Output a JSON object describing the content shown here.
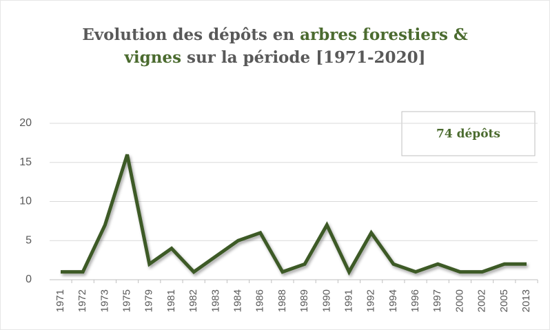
{
  "chart_data": {
    "type": "line",
    "title_lines": [
      [
        {
          "text": "Evolution des dépôts en ",
          "color": "#595959"
        },
        {
          "text": "arbres forestiers &",
          "color": "#4b6b2f"
        }
      ],
      [
        {
          "text": "vignes",
          "color": "#4b6b2f"
        },
        {
          "text": " sur la période [1971-2020]",
          "color": "#595959"
        }
      ]
    ],
    "annotation": "74 dépôts",
    "categories": [
      "1971",
      "1972",
      "1973",
      "1975",
      "1979",
      "1981",
      "1982",
      "1983",
      "1984",
      "1986",
      "1988",
      "1989",
      "1990",
      "1991",
      "1992",
      "1994",
      "1996",
      "1997",
      "2000",
      "2002",
      "2005",
      "2013"
    ],
    "values": [
      1,
      1,
      7,
      16,
      2,
      4,
      1,
      3,
      5,
      6,
      1,
      2,
      7,
      1,
      6,
      2,
      1,
      2,
      1,
      1,
      2,
      2
    ],
    "color": "#3d5a28",
    "ylim": [
      0,
      20
    ],
    "yticks": [
      0,
      5,
      10,
      15,
      20
    ],
    "grid": true
  }
}
